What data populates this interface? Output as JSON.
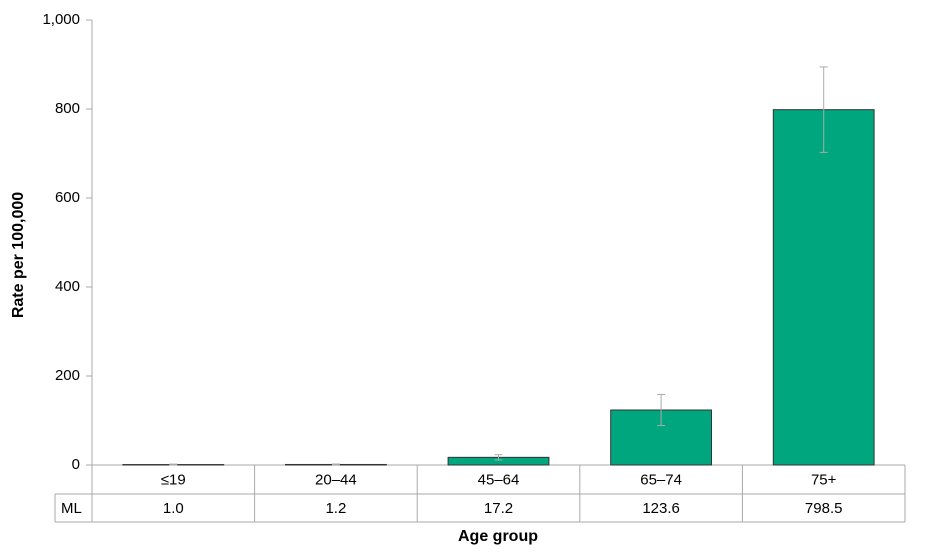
{
  "chart_data": {
    "type": "bar",
    "x_label": "Age group",
    "y_label": "Rate per 100,000",
    "categories": [
      "≤19",
      "20–44",
      "45–64",
      "65–74",
      "75+"
    ],
    "series": [
      {
        "name": "ML",
        "color": "#00a67e",
        "values": [
          1.0,
          1.2,
          17.2,
          123.6,
          798.5
        ],
        "value_labels": [
          "1.0",
          "1.2",
          "17.2",
          "123.6",
          "798.5"
        ],
        "errors": [
          1,
          1,
          6,
          35,
          96
        ]
      }
    ],
    "ylim": [
      0,
      1000
    ],
    "yticks": [
      0,
      200,
      400,
      600,
      800,
      {
        "value": 1000,
        "label": "1,000"
      }
    ]
  }
}
